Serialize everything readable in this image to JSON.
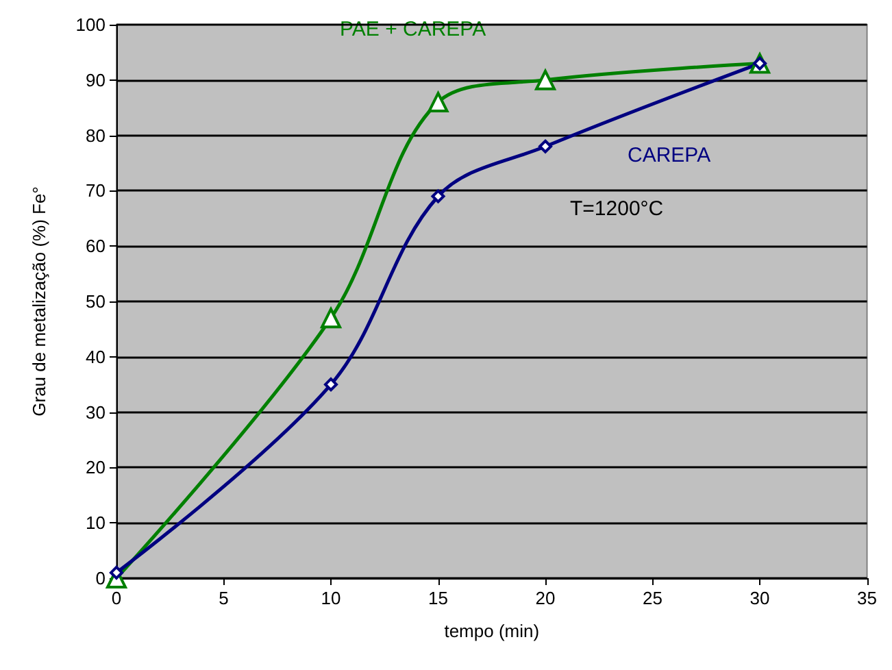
{
  "chart_data": {
    "type": "line",
    "xlabel": "tempo (min)",
    "ylabel": "Grau de metalização (%) Fe°",
    "xlim": [
      0,
      35
    ],
    "xticks": [
      0,
      5,
      10,
      15,
      20,
      25,
      30,
      35
    ],
    "ylim": [
      0,
      100
    ],
    "yticks": [
      0,
      10,
      20,
      30,
      40,
      50,
      60,
      70,
      80,
      90,
      100
    ],
    "grid": "y",
    "legend": false,
    "line_style": "solid",
    "annotations": [
      "T=1200°C"
    ],
    "series": [
      {
        "name": "PAE + CAREPA",
        "color": "#008000",
        "marker": "triangle",
        "x": [
          0,
          10,
          15,
          20,
          30
        ],
        "values": [
          0,
          47,
          86,
          90,
          93
        ]
      },
      {
        "name": "CAREPA",
        "color": "#000080",
        "marker": "diamond",
        "x": [
          0,
          10,
          15,
          20,
          30
        ],
        "values": [
          1,
          35,
          69,
          78,
          93
        ]
      }
    ]
  }
}
